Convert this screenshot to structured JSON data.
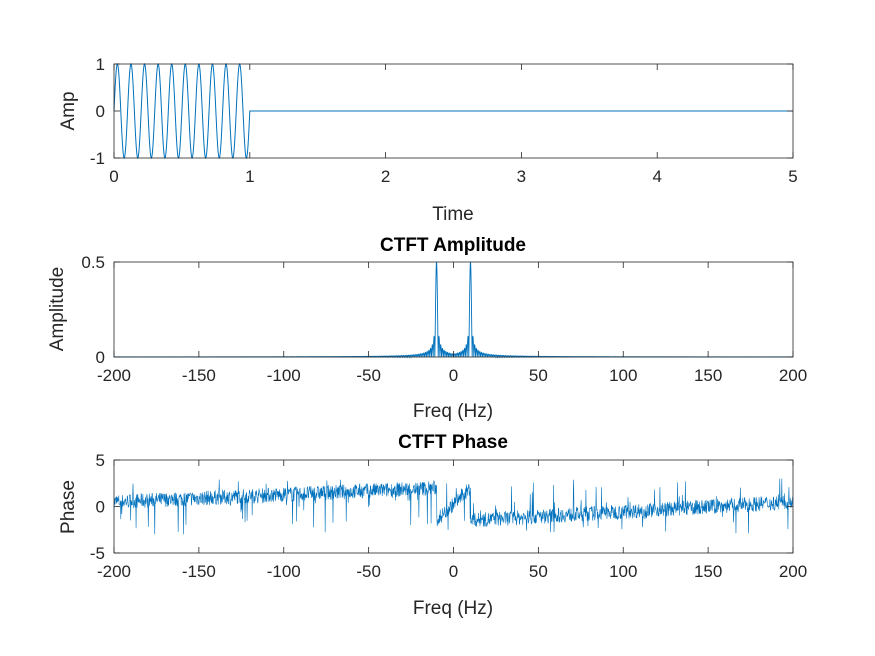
{
  "chart_data": [
    {
      "type": "line",
      "title": "",
      "xlabel": "Time",
      "ylabel": "Amp",
      "xlim": [
        0,
        5
      ],
      "ylim": [
        -1,
        1
      ],
      "xticks": [
        "0",
        "1",
        "2",
        "3",
        "4",
        "5"
      ],
      "yticks": [
        "-1",
        "0",
        "1"
      ],
      "grid": false,
      "color": "#0072BD",
      "series": [
        {
          "description_of_signal": "sine wave, 10 Hz, amplitude 1, from t=0 to t=1, then 0 until t=5",
          "frequency_hz": 10,
          "amplitude": 1,
          "on_interval": [
            0,
            1
          ],
          "off_value": 0
        }
      ]
    },
    {
      "type": "line",
      "title": "CTFT Amplitude",
      "xlabel": "Freq (Hz)",
      "ylabel": "Amplitude",
      "xlim": [
        -200,
        200
      ],
      "ylim": [
        0,
        0.5
      ],
      "xticks": [
        "-200",
        "-150",
        "-100",
        "-50",
        "0",
        "50",
        "100",
        "150",
        "200"
      ],
      "yticks": [
        "0",
        "0.5"
      ],
      "grid": false,
      "color": "#0072BD",
      "series": [
        {
          "peaks": [
            {
              "x": -10,
              "y": 0.5
            },
            {
              "x": 10,
              "y": 0.5
            }
          ],
          "baseline": 0
        }
      ]
    },
    {
      "type": "line",
      "title": "CTFT Phase",
      "xlabel": "Freq (Hz)",
      "ylabel": "Phase",
      "xlim": [
        -200,
        200
      ],
      "ylim": [
        -5,
        5
      ],
      "xticks": [
        "-200",
        "-150",
        "-100",
        "-50",
        "0",
        "50",
        "100",
        "150",
        "200"
      ],
      "yticks": [
        "-5",
        "0",
        "5"
      ],
      "grid": false,
      "color": "#0072BD",
      "series": [
        {
          "trend_points": [
            {
              "x": -200,
              "y": 0.5
            },
            {
              "x": -10,
              "y": 2
            },
            {
              "x": -10,
              "y": -1.5
            },
            {
              "x": 10,
              "y": 2
            },
            {
              "x": 10,
              "y": -1.5
            },
            {
              "x": 200,
              "y": 0.5
            }
          ],
          "noise_spread": 1,
          "spike_range": [
            -3,
            3
          ]
        }
      ]
    }
  ]
}
